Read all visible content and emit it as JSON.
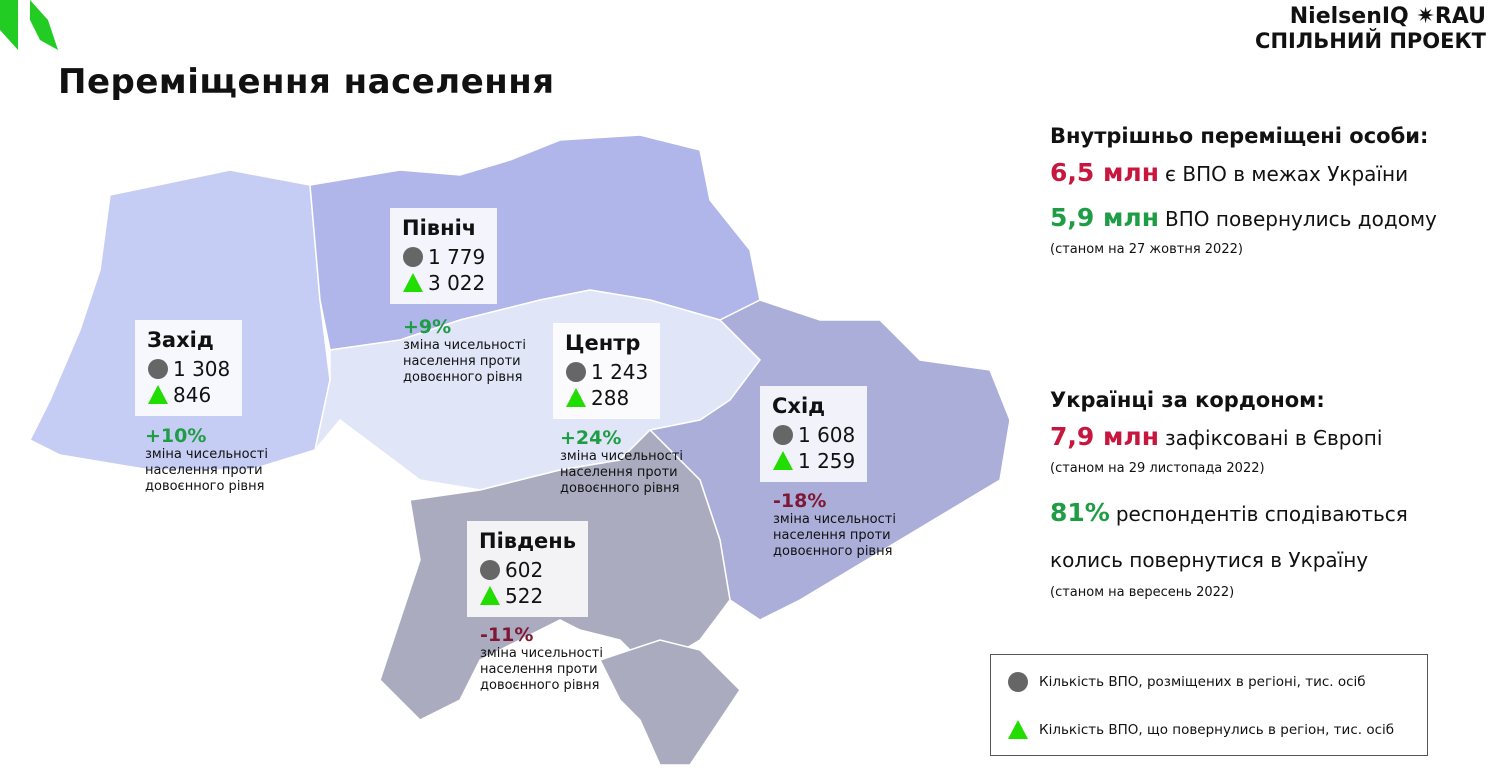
{
  "logo": {
    "brand": "NielsenIQ",
    "partner": "RAU",
    "subtitle": "СПІЛЬНИЙ ПРОЕКТ"
  },
  "title": "Переміщення населення",
  "regions": [
    {
      "name": "Захід",
      "placed": "1 308",
      "returned": "846",
      "change": "+10%",
      "change_note": "зміна чисельності населення проти довоєнного рівня"
    },
    {
      "name": "Північ",
      "placed": "1 779",
      "returned": "3 022",
      "change": "+9%",
      "change_note": "зміна чисельності населення проти довоєнного рівня"
    },
    {
      "name": "Центр",
      "placed": "1 243",
      "returned": "288",
      "change": "+24%",
      "change_note": "зміна чисельності населення проти довоєнного рівня"
    },
    {
      "name": "Схід",
      "placed": "1 608",
      "returned": "1 259",
      "change": "-18%",
      "change_note": "зміна чисельності населення проти довоєнного рівня"
    },
    {
      "name": "Південь",
      "placed": "602",
      "returned": "522",
      "change": "-11%",
      "change_note": "зміна чисельності населення проти довоєнного рівня"
    }
  ],
  "idp": {
    "heading": "Внутрішньо переміщені особи:",
    "items": [
      {
        "value": "6,5 млн",
        "text": "є ВПО в межах України"
      },
      {
        "value": "5,9 млн",
        "text": "ВПО повернулись додому"
      }
    ],
    "note": "(станом на 27 жовтня 2022)"
  },
  "abroad": {
    "heading": "Українці за кордоном:",
    "items": [
      {
        "value": "7,9 млн",
        "text": "зафіксовані в Європі",
        "note": "(станом на 29 листопада 2022)"
      },
      {
        "value": "81%",
        "text": "респондентів сподіваються колись повернутися в Україну",
        "note": "(станом на вересень 2022)"
      }
    ]
  },
  "legend": {
    "placed": "Кількість ВПО, розміщених в регіоні, тис. осіб",
    "returned": "Кількість ВПО, що повернулись в регіон, тис. осіб"
  }
}
